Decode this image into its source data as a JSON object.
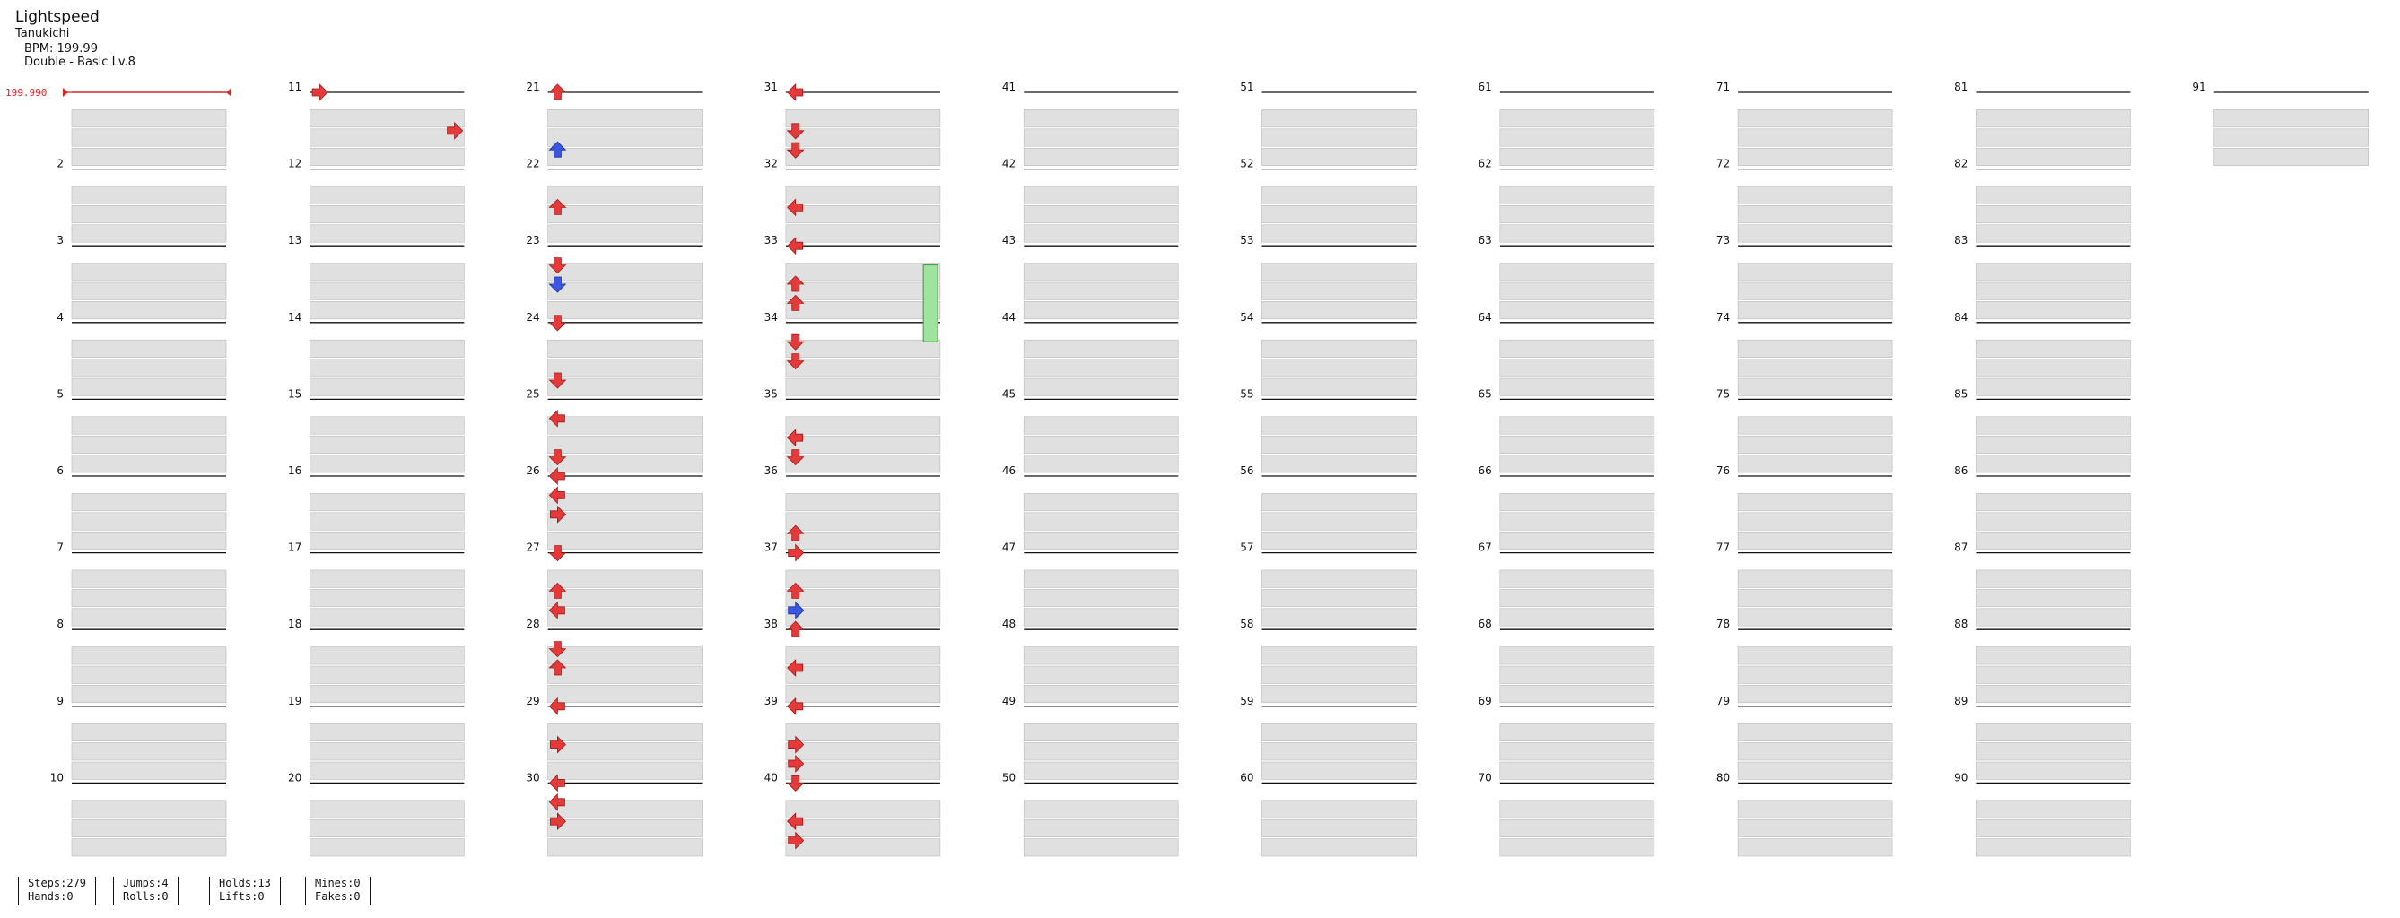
{
  "song": {
    "title": "Lightspeed",
    "artist": "Tanukichi",
    "bpm_text": "BPM: 199.99",
    "chart_text": "Double - Basic Lv.8"
  },
  "bpm_marker": "199.990",
  "measure_labels": [
    "2",
    "3",
    "4",
    "5",
    "6",
    "7",
    "8",
    "9",
    "10",
    "11",
    "12",
    "13",
    "14",
    "15",
    "16",
    "17",
    "18",
    "19",
    "20",
    "21",
    "22",
    "23",
    "24",
    "25",
    "26",
    "27",
    "28",
    "29",
    "30",
    "31",
    "32",
    "33",
    "34",
    "35",
    "36",
    "37",
    "38",
    "39",
    "40",
    "41",
    "42",
    "43",
    "44",
    "45",
    "46",
    "47",
    "48",
    "49",
    "50",
    "51",
    "52",
    "53",
    "54",
    "55",
    "56",
    "57",
    "58",
    "59",
    "60",
    "61",
    "62",
    "63",
    "64",
    "65",
    "66",
    "67",
    "68",
    "69",
    "70",
    "71",
    "72",
    "73",
    "74",
    "75",
    "76",
    "77",
    "78",
    "79",
    "80",
    "81",
    "82",
    "83",
    "84",
    "85",
    "86",
    "87",
    "88",
    "89",
    "90",
    "91"
  ],
  "notes": [
    [
      1,
      0,
      "R",
      "r",
      0
    ],
    [
      1,
      2,
      "R",
      "r",
      1
    ],
    [
      2,
      0,
      "R",
      "u",
      0
    ],
    [
      2,
      3,
      "B",
      "u",
      0
    ],
    [
      2,
      6,
      "R",
      "u",
      0
    ],
    [
      2,
      9,
      "R",
      "d",
      0
    ],
    [
      2,
      10,
      "B",
      "d",
      0
    ],
    [
      2,
      12,
      "R",
      "d",
      0
    ],
    [
      2,
      15,
      "R",
      "d",
      0
    ],
    [
      2,
      17,
      "R",
      "l",
      0
    ],
    [
      2,
      19,
      "R",
      "d",
      0
    ],
    [
      2,
      20,
      "R",
      "l",
      0
    ],
    [
      2,
      21,
      "R",
      "l",
      0
    ],
    [
      2,
      22,
      "R",
      "r",
      0
    ],
    [
      2,
      24,
      "R",
      "d",
      0
    ],
    [
      2,
      26,
      "R",
      "u",
      0
    ],
    [
      2,
      27,
      "R",
      "l",
      0
    ],
    [
      2,
      29,
      "R",
      "d",
      0
    ],
    [
      2,
      30,
      "R",
      "u",
      0
    ],
    [
      2,
      32,
      "R",
      "l",
      0
    ],
    [
      2,
      34,
      "R",
      "r",
      0
    ],
    [
      2,
      36,
      "R",
      "l",
      0
    ],
    [
      2,
      37,
      "R",
      "l",
      0
    ],
    [
      2,
      38,
      "R",
      "r",
      0
    ],
    [
      3,
      0,
      "R",
      "l",
      0
    ],
    [
      3,
      2,
      "R",
      "d",
      0
    ],
    [
      3,
      3,
      "R",
      "d",
      0
    ],
    [
      3,
      6,
      "R",
      "l",
      0
    ],
    [
      3,
      8,
      "R",
      "l",
      0
    ],
    [
      3,
      10,
      "R",
      "u",
      0
    ],
    [
      3,
      11,
      "R",
      "u",
      0
    ],
    [
      3,
      13,
      "R",
      "d",
      0
    ],
    [
      3,
      14,
      "R",
      "d",
      0
    ],
    [
      3,
      18,
      "R",
      "l",
      0
    ],
    [
      3,
      19,
      "R",
      "d",
      0
    ],
    [
      3,
      23,
      "R",
      "u",
      0
    ],
    [
      3,
      24,
      "R",
      "r",
      0
    ],
    [
      3,
      26,
      "R",
      "u",
      0
    ],
    [
      3,
      27,
      "B",
      "r",
      0
    ],
    [
      3,
      28,
      "R",
      "u",
      0
    ],
    [
      3,
      30,
      "R",
      "l",
      0
    ],
    [
      3,
      32,
      "R",
      "l",
      0
    ],
    [
      3,
      34,
      "R",
      "r",
      0
    ],
    [
      3,
      35,
      "R",
      "r",
      0
    ],
    [
      3,
      36,
      "R",
      "d",
      0
    ],
    [
      3,
      38,
      "R",
      "l",
      0
    ],
    [
      3,
      39,
      "R",
      "r",
      0
    ]
  ],
  "holds": [
    [
      3,
      7,
      "L",
      "g",
      9,
      13
    ]
  ],
  "stats": {
    "steps": "Steps:279",
    "hands": "Hands:0",
    "jumps": "Jumps:4",
    "rolls": "Rolls:0",
    "holds": "Holds:13",
    "lifts": "Lifts:0",
    "mines": "Mines:0",
    "fakes": "Fakes:0"
  }
}
